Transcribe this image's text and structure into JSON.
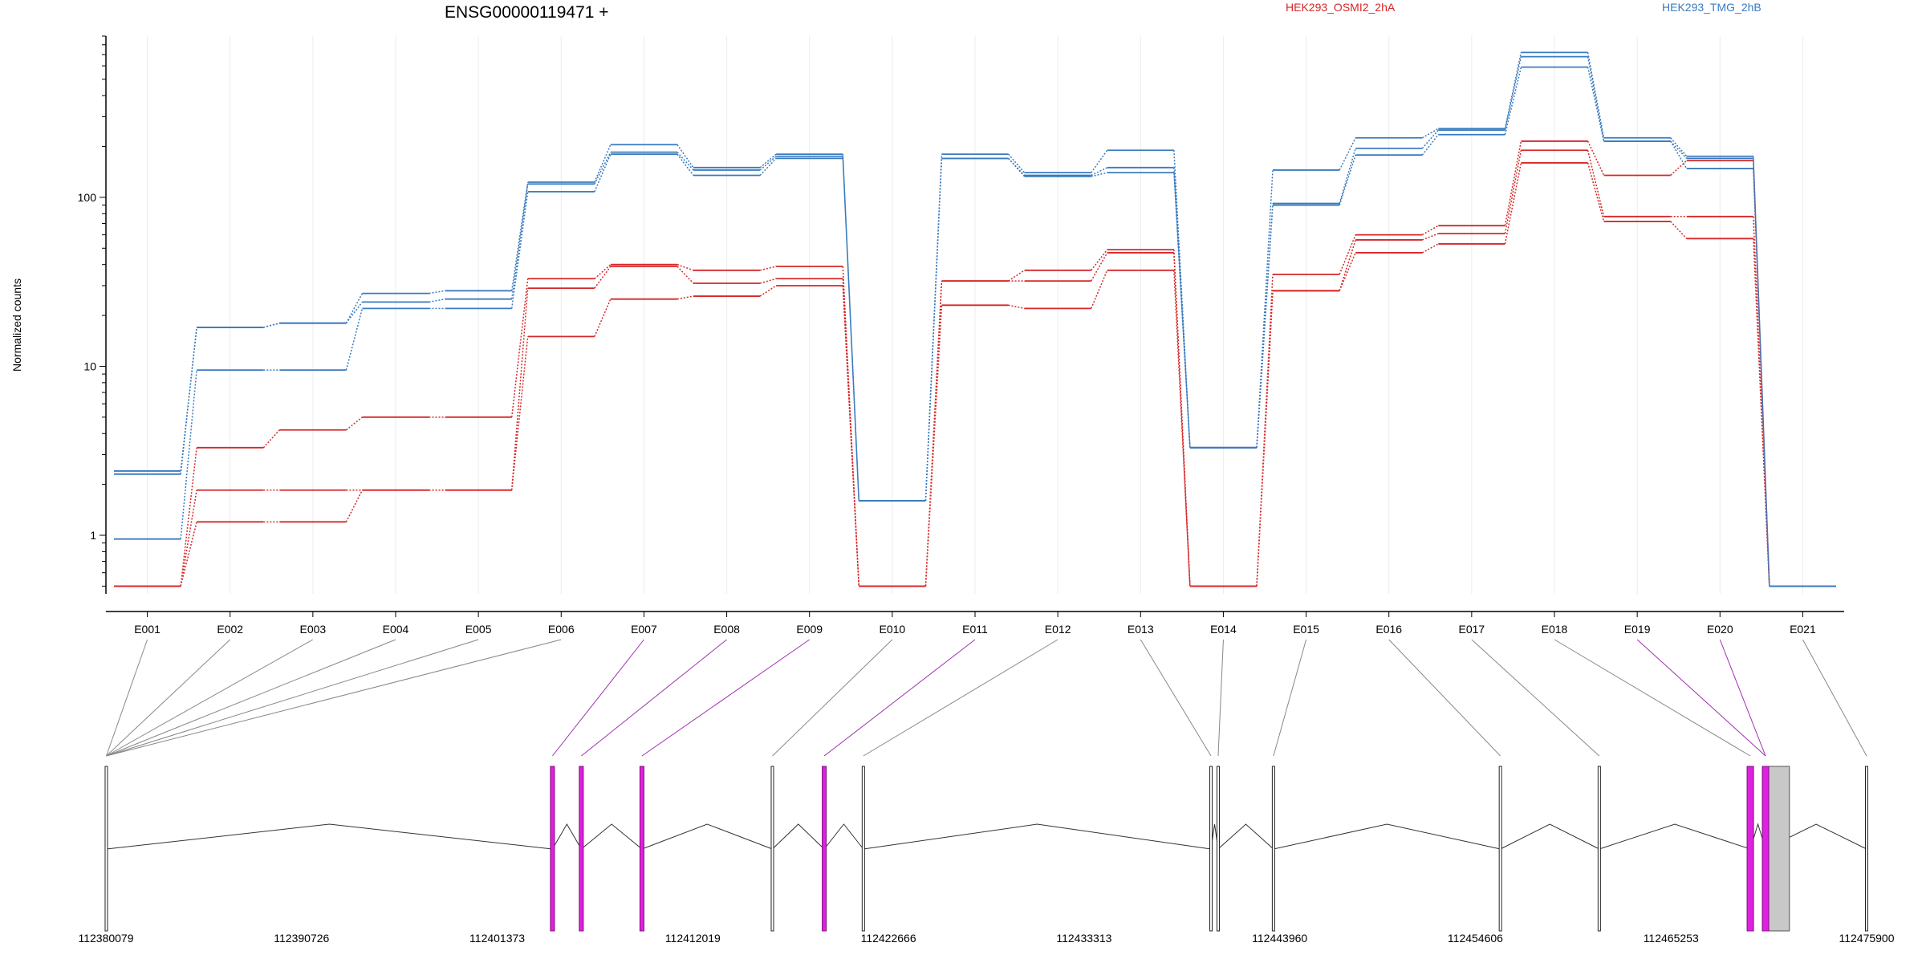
{
  "chart_data": {
    "type": "line",
    "title": "ENSG00000119471 +",
    "ylabel": "Normalized counts",
    "yscale": "log",
    "ylim": [
      0.45,
      900
    ],
    "yticks": [
      "1",
      "10",
      "100"
    ],
    "grid": true,
    "legend_position": "top",
    "categories": [
      "E001",
      "E002",
      "E003",
      "E004",
      "E005",
      "E006",
      "E007",
      "E008",
      "E009",
      "E010",
      "E011",
      "E012",
      "E013",
      "E014",
      "E015",
      "E016",
      "E017",
      "E018",
      "E019",
      "E020",
      "E021"
    ],
    "colors": {
      "HEK293_OSMI2_2hA": "#d62728",
      "HEK293_TMG_2hB": "#3a7bbf",
      "exon": "#c8c8c8",
      "exon_highlight": "#e020e0",
      "connector": "#888888",
      "connector_highlight": "#a030b0"
    },
    "series": [
      {
        "name": "HEK293_OSMI2_2hA",
        "color": "#d62728",
        "values": [
          0.5,
          3.3,
          4.2,
          5.0,
          5.0,
          33,
          40,
          37,
          39,
          0.5,
          32,
          37,
          49,
          0.5,
          35,
          60,
          68,
          215,
          135,
          165,
          0.5
        ]
      },
      {
        "name": "HEK293_OSMI2_2hA",
        "color": "#d62728",
        "values": [
          0.5,
          1.85,
          1.85,
          1.85,
          1.85,
          29,
          39,
          31,
          33,
          0.5,
          32,
          32,
          47,
          0.5,
          28,
          56,
          61,
          190,
          77,
          77,
          0.5
        ]
      },
      {
        "name": "HEK293_OSMI2_2hA",
        "color": "#d62728",
        "values": [
          0.5,
          1.2,
          1.2,
          1.85,
          1.85,
          15,
          25,
          26,
          30,
          0.5,
          23,
          22,
          37,
          0.5,
          28,
          47,
          53,
          160,
          72,
          57,
          0.5
        ]
      },
      {
        "name": "HEK293_TMG_2hB",
        "color": "#3a7bbf",
        "values": [
          2.4,
          17,
          18,
          27,
          28,
          123,
          205,
          150,
          180,
          1.6,
          180,
          140,
          190,
          3.3,
          145,
          225,
          255,
          720,
          225,
          175,
          0.5
        ]
      },
      {
        "name": "HEK293_TMG_2hB",
        "color": "#3a7bbf",
        "values": [
          2.3,
          17,
          18,
          24,
          25,
          120,
          185,
          145,
          175,
          1.6,
          170,
          135,
          150,
          3.3,
          92,
          195,
          250,
          680,
          215,
          170,
          0.5
        ]
      },
      {
        "name": "HEK293_TMG_2hB",
        "color": "#3a7bbf",
        "values": [
          0.95,
          9.5,
          9.5,
          22,
          22,
          108,
          180,
          135,
          170,
          1.6,
          170,
          133,
          140,
          3.3,
          90,
          178,
          235,
          590,
          215,
          148,
          0.5
        ]
      }
    ],
    "gene_model": {
      "coordinates": [
        "112380079",
        "112390726",
        "112401373",
        "112412019",
        "112422666",
        "112433313",
        "112443960",
        "112454606",
        "112465253",
        "112475900"
      ],
      "range": [
        112380079,
        112475900
      ],
      "exon_positions": [
        112380100,
        112404380,
        112405950,
        112409250,
        112416350,
        112419170,
        112421300,
        112440220,
        112440610,
        112443620,
        112455970,
        112461350,
        112469570,
        112470400,
        112475900
      ],
      "highlight_exons": [
        1,
        2,
        3,
        5,
        12,
        13
      ],
      "wide_exon": {
        "start": 112470350,
        "end": 112471700
      },
      "exon_links": [
        0,
        0,
        0,
        0,
        0,
        0,
        1,
        2,
        3,
        4,
        5,
        6,
        7,
        8,
        9,
        10,
        11,
        12,
        13,
        13,
        14
      ],
      "highlight_links": [
        6,
        7,
        8,
        10,
        18,
        19
      ]
    }
  }
}
